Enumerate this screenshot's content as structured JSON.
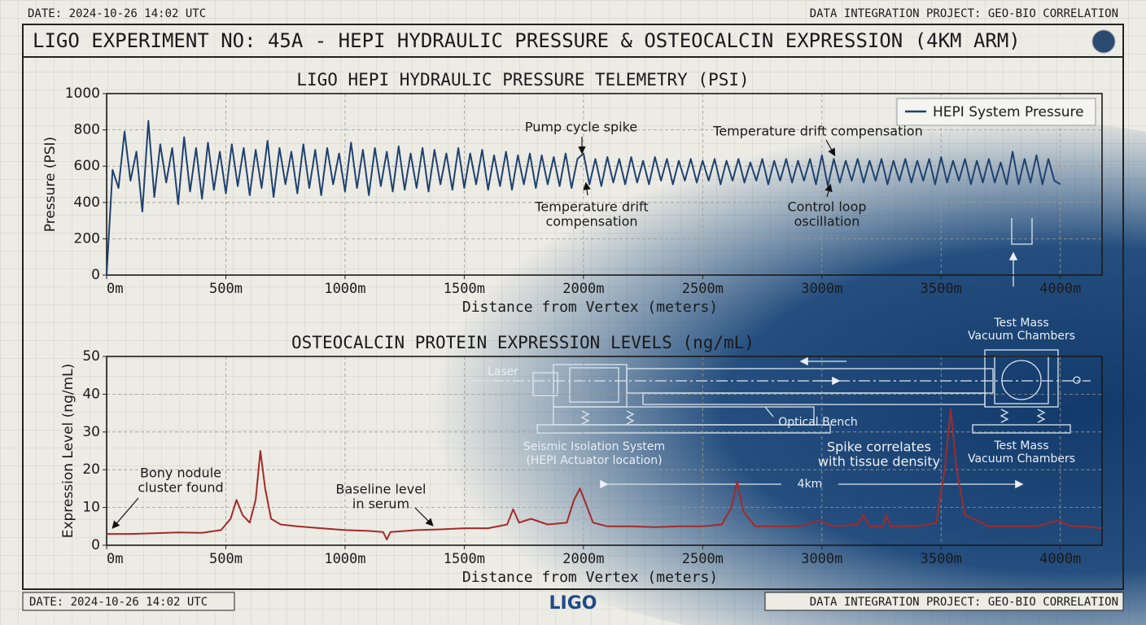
{
  "header": {
    "date": "DATE: 2024-10-26 14:02 UTC",
    "project": "DATA INTEGRATION PROJECT: GEO-BIO CORRELATION",
    "title": "LIGO EXPERIMENT NO: 45A - HEPI HYDRAULIC PRESSURE & OSTEOCALCIN EXPRESSION (4KM ARM)"
  },
  "footer": {
    "date": "DATE: 2024-10-26 14:02 UTC",
    "logo": "LIGO",
    "project": "DATA INTEGRATION PROJECT: GEO-BIO CORRELATION"
  },
  "diagram": {
    "labels": [
      [
        "Laser"
      ],
      [
        "Optical Bench"
      ],
      [
        "Seismic Isolation System",
        "(HEPI Actuator location)"
      ],
      [
        "Test Mass",
        "Vacuum Chambers"
      ],
      [
        "Test Mass",
        "Vacuum Chambers"
      ],
      [
        "4km"
      ]
    ]
  },
  "chart_data": [
    {
      "type": "line",
      "title": "LIGO HEPI HYDRAULIC PRESSURE TELEMETRY (PSI)",
      "x_label": "Distance from Vertex (meters)",
      "y_label": "Pressure (PSI)",
      "xlim": [
        0,
        4175
      ],
      "ylim": [
        0,
        1000
      ],
      "xticks": [
        {
          "value": 0,
          "label": "0m"
        },
        {
          "value": 500,
          "label": "500m"
        },
        {
          "value": 1000,
          "label": "1000m"
        },
        {
          "value": 1500,
          "label": "1500m"
        },
        {
          "value": 2000,
          "label": "2000m"
        },
        {
          "value": 2500,
          "label": "2500m"
        },
        {
          "value": 3000,
          "label": "3000m"
        },
        {
          "value": 3500,
          "label": "3500m"
        },
        {
          "value": 4000,
          "label": "4000m"
        }
      ],
      "yticks": [
        0,
        200,
        400,
        600,
        800,
        1000
      ],
      "grid": true,
      "legend": "upper right",
      "annotations": [
        [
          "Pump cycle spike"
        ],
        [
          "Temperature drift compensation"
        ],
        [
          "Temperature drift",
          "compensation"
        ],
        [
          "Control loop",
          "oscillation"
        ]
      ],
      "x": [
        0,
        25,
        50,
        75,
        100,
        125,
        150,
        175,
        200,
        225,
        250,
        275,
        300,
        325,
        350,
        375,
        400,
        425,
        450,
        475,
        500,
        525,
        550,
        575,
        600,
        625,
        650,
        675,
        700,
        725,
        750,
        775,
        800,
        825,
        850,
        875,
        900,
        925,
        950,
        975,
        1000,
        1025,
        1050,
        1075,
        1100,
        1125,
        1150,
        1175,
        1200,
        1225,
        1250,
        1275,
        1300,
        1325,
        1350,
        1375,
        1400,
        1425,
        1450,
        1475,
        1500,
        1525,
        1550,
        1575,
        1600,
        1625,
        1650,
        1675,
        1700,
        1725,
        1750,
        1775,
        1800,
        1825,
        1850,
        1875,
        1900,
        1925,
        1950,
        1975,
        2000,
        2025,
        2050,
        2075,
        2100,
        2125,
        2150,
        2175,
        2200,
        2225,
        2250,
        2275,
        2300,
        2325,
        2350,
        2375,
        2400,
        2425,
        2450,
        2475,
        2500,
        2525,
        2550,
        2575,
        2600,
        2625,
        2650,
        2675,
        2700,
        2725,
        2750,
        2775,
        2800,
        2825,
        2850,
        2875,
        2900,
        2925,
        2950,
        2975,
        3000,
        3025,
        3050,
        3075,
        3100,
        3125,
        3150,
        3175,
        3200,
        3225,
        3250,
        3275,
        3300,
        3325,
        3350,
        3375,
        3400,
        3425,
        3450,
        3475,
        3500,
        3525,
        3550,
        3575,
        3600,
        3625,
        3650,
        3675,
        3700,
        3725,
        3750,
        3775,
        3800,
        3825,
        3850,
        3875,
        3900,
        3925,
        3950,
        3975,
        4000
      ],
      "series": [
        {
          "name": "HEPI System Pressure",
          "color": "#1f4270",
          "values": [
            0,
            580,
            480,
            790,
            520,
            680,
            350,
            850,
            430,
            720,
            510,
            700,
            390,
            760,
            460,
            700,
            420,
            730,
            470,
            680,
            450,
            720,
            490,
            700,
            440,
            690,
            480,
            740,
            430,
            700,
            500,
            680,
            450,
            720,
            480,
            690,
            440,
            700,
            500,
            670,
            460,
            730,
            480,
            690,
            440,
            700,
            490,
            680,
            460,
            710,
            470,
            670,
            480,
            700,
            460,
            690,
            500,
            670,
            470,
            700,
            480,
            670,
            500,
            690,
            470,
            660,
            490,
            680,
            470,
            660,
            500,
            670,
            480,
            660,
            500,
            650,
            490,
            670,
            480,
            640,
            670,
            500,
            640,
            490,
            650,
            510,
            640,
            500,
            650,
            510,
            630,
            500,
            650,
            520,
            640,
            500,
            630,
            520,
            640,
            510,
            630,
            520,
            640,
            500,
            630,
            520,
            640,
            510,
            620,
            520,
            640,
            500,
            630,
            520,
            640,
            510,
            630,
            520,
            640,
            500,
            660,
            490,
            640,
            510,
            630,
            520,
            640,
            510,
            630,
            520,
            640,
            500,
            630,
            520,
            640,
            510,
            630,
            520,
            640,
            500,
            650,
            510,
            630,
            520,
            640,
            500,
            630,
            510,
            640,
            510,
            620,
            500,
            680,
            500,
            640,
            510,
            660,
            500,
            640,
            520,
            500
          ]
        }
      ]
    },
    {
      "type": "line",
      "title": "OSTEOCALCIN PROTEIN EXPRESSION LEVELS (ng/mL)",
      "x_label": "Distance from Vertex (meters)",
      "y_label": "Expression Level (ng/mL)",
      "xlim": [
        0,
        4175
      ],
      "ylim": [
        0,
        50
      ],
      "xticks": [
        {
          "value": 0,
          "label": "0m"
        },
        {
          "value": 500,
          "label": "500m"
        },
        {
          "value": 1000,
          "label": "1000m"
        },
        {
          "value": 1500,
          "label": "1500m"
        },
        {
          "value": 2000,
          "label": "2000m"
        },
        {
          "value": 2500,
          "label": "2500m"
        },
        {
          "value": 3000,
          "label": "3000m"
        },
        {
          "value": 3500,
          "label": "3500m"
        },
        {
          "value": 4000,
          "label": "4000m"
        }
      ],
      "yticks": [
        0,
        10,
        20,
        30,
        40,
        50
      ],
      "grid": true,
      "annotations": [
        [
          "Bony nodule",
          "cluster found"
        ],
        [
          "Baseline level",
          "in serum"
        ],
        [
          "Spike correlates",
          "with tissue density"
        ]
      ],
      "x": [
        0,
        100,
        200,
        300,
        400,
        480,
        520,
        545,
        570,
        600,
        625,
        645,
        665,
        690,
        730,
        800,
        900,
        1000,
        1100,
        1160,
        1175,
        1190,
        1300,
        1400,
        1500,
        1600,
        1680,
        1705,
        1730,
        1780,
        1850,
        1930,
        1960,
        1985,
        2010,
        2040,
        2100,
        2200,
        2300,
        2400,
        2500,
        2580,
        2620,
        2645,
        2670,
        2720,
        2800,
        2900,
        2990,
        3050,
        3150,
        3175,
        3200,
        3255,
        3270,
        3290,
        3400,
        3480,
        3515,
        3540,
        3565,
        3600,
        3700,
        3800,
        3900,
        3990,
        4050,
        4100,
        4175
      ],
      "series": [
        {
          "color": "#a32a2a",
          "values": [
            3,
            3,
            3.2,
            3.4,
            3.3,
            4,
            7,
            12,
            8,
            6,
            12,
            25,
            15,
            7,
            5.5,
            5,
            4.5,
            4,
            3.8,
            3.5,
            1.5,
            3.5,
            4,
            4.2,
            4.5,
            4.5,
            5.5,
            9.5,
            6,
            7,
            5.5,
            6,
            12,
            15,
            11,
            6,
            5,
            5,
            4.8,
            5,
            5,
            5.5,
            10,
            17,
            9,
            5,
            5,
            5,
            6.5,
            5,
            5.5,
            8,
            5,
            5,
            8,
            5,
            5,
            6,
            20,
            36,
            20,
            8,
            5,
            5,
            5,
            6.5,
            5,
            5,
            4.5
          ]
        }
      ]
    }
  ]
}
